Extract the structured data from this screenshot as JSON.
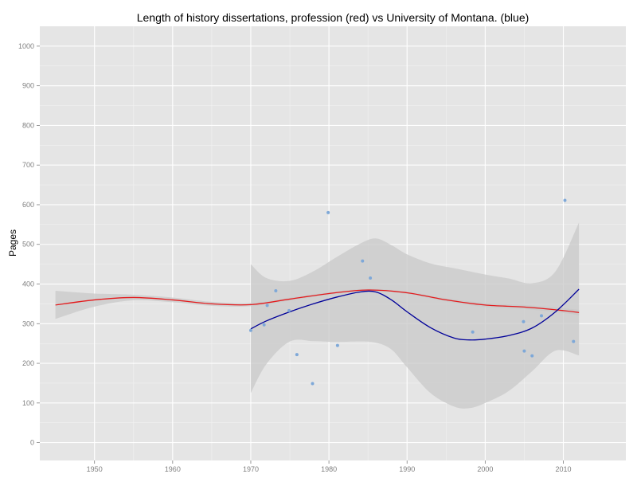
{
  "chart_data": {
    "type": "scatter",
    "title": "Length of history dissertations, profession (red) vs University of Montana. (blue)",
    "xlabel": "",
    "ylabel": "Pages",
    "xlim": [
      1943,
      2018
    ],
    "ylim": [
      -45,
      1050
    ],
    "x_ticks": [
      1950,
      1960,
      1970,
      1980,
      1990,
      2000,
      2010
    ],
    "y_ticks": [
      0,
      100,
      200,
      300,
      400,
      500,
      600,
      700,
      800,
      900,
      1000
    ],
    "grid": true,
    "legend": "none",
    "colors": {
      "panel": "#e5e5e5",
      "grid_major": "#ffffff",
      "grid_minor": "#f2f2f2",
      "points": "#7ea8d8",
      "ribbon": "#c8c8c8",
      "red_line": "#e31a1c",
      "blue_line": "#000099"
    },
    "points": [
      {
        "x": 1970.0,
        "y": 283
      },
      {
        "x": 1971.7,
        "y": 297
      },
      {
        "x": 1972.1,
        "y": 346
      },
      {
        "x": 1973.2,
        "y": 383
      },
      {
        "x": 1974.9,
        "y": 333
      },
      {
        "x": 1975.9,
        "y": 222
      },
      {
        "x": 1977.9,
        "y": 149
      },
      {
        "x": 1979.9,
        "y": 580
      },
      {
        "x": 1981.1,
        "y": 245
      },
      {
        "x": 1984.3,
        "y": 458
      },
      {
        "x": 1985.3,
        "y": 415
      },
      {
        "x": 1998.4,
        "y": 279
      },
      {
        "x": 2004.9,
        "y": 305
      },
      {
        "x": 2005.0,
        "y": 231
      },
      {
        "x": 2006.0,
        "y": 219
      },
      {
        "x": 2007.2,
        "y": 320
      },
      {
        "x": 2010.2,
        "y": 611
      },
      {
        "x": 2011.3,
        "y": 255
      }
    ],
    "series": [
      {
        "name": "profession",
        "x": [
          1945,
          1950,
          1955,
          1960,
          1965,
          1970,
          1975,
          1980,
          1985,
          1990,
          1995,
          2000,
          2005,
          2010,
          2012
        ],
        "y": [
          347,
          360,
          366,
          360,
          350,
          348,
          362,
          376,
          385,
          378,
          360,
          347,
          342,
          333,
          328
        ],
        "ribbon_upper": [
          383,
          376,
          373,
          366,
          355,
          352,
          366,
          379,
          388,
          381,
          364,
          352,
          347,
          339,
          335
        ],
        "ribbon_lower": [
          312,
          343,
          359,
          354,
          345,
          344,
          358,
          373,
          382,
          375,
          356,
          342,
          337,
          327,
          321
        ]
      },
      {
        "name": "University of Montana",
        "x": [
          1970,
          1972,
          1975,
          1978,
          1981,
          1984,
          1986,
          1988,
          1990,
          1993,
          1996,
          1998,
          2000,
          2003,
          2006,
          2009,
          2012
        ],
        "y": [
          287,
          307,
          330,
          350,
          367,
          380,
          380,
          360,
          330,
          290,
          264,
          259,
          261,
          270,
          289,
          330,
          387
        ],
        "ribbon_upper": [
          450,
          415,
          408,
          432,
          468,
          502,
          515,
          498,
          475,
          452,
          440,
          432,
          424,
          414,
          402,
          432,
          555
        ],
        "ribbon_lower": [
          125,
          198,
          255,
          256,
          254,
          255,
          252,
          235,
          190,
          125,
          91,
          87,
          100,
          130,
          180,
          232,
          220
        ]
      }
    ]
  }
}
